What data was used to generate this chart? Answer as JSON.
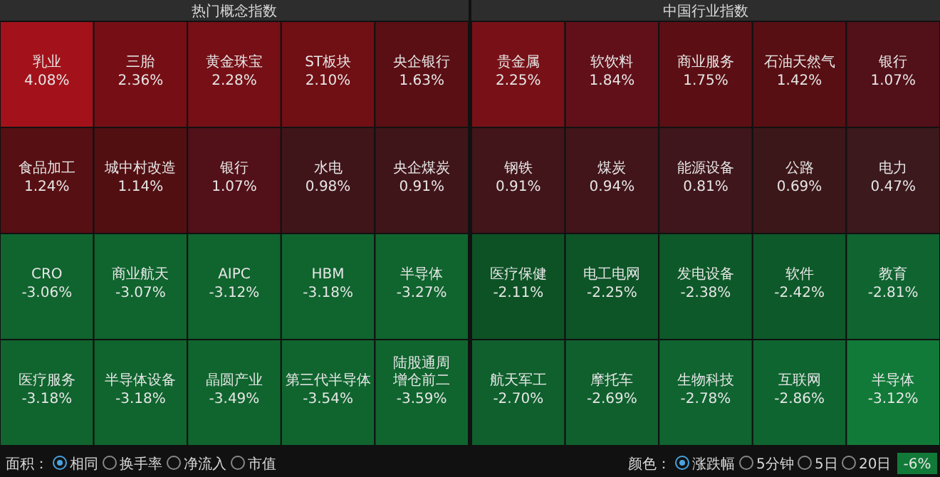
{
  "chart_data": [
    {
      "type": "other",
      "title": "热门概念指数",
      "categories": [
        "乳业",
        "三胎",
        "黄金珠宝",
        "ST板块",
        "央企银行",
        "食品加工",
        "城中村改造",
        "银行",
        "水电",
        "央企煤炭",
        "CRO",
        "商业航天",
        "AIPC",
        "HBM",
        "半导体",
        "医疗服务",
        "半导体设备",
        "晶圆产业",
        "第三代半导体",
        "陆股通周增仓前二"
      ],
      "values": [
        4.08,
        2.36,
        2.28,
        2.1,
        1.63,
        1.24,
        1.14,
        1.07,
        0.98,
        0.91,
        -3.06,
        -3.07,
        -3.12,
        -3.18,
        -3.27,
        -3.18,
        -3.18,
        -3.49,
        -3.54,
        -3.59
      ],
      "value_labels": [
        "4.08%",
        "2.36%",
        "2.28%",
        "2.10%",
        "1.63%",
        "1.24%",
        "1.14%",
        "1.07%",
        "0.98%",
        "0.91%",
        "-3.06%",
        "-3.07%",
        "-3.12%",
        "-3.18%",
        "-3.27%",
        "-3.18%",
        "-3.18%",
        "-3.49%",
        "-3.54%",
        "-3.59%"
      ],
      "colors": [
        "#a3121a",
        "#7a1016",
        "#7a1117",
        "#741015",
        "#5e1015",
        "#5a1013",
        "#561013",
        "#56111a",
        "#44161b",
        "#44161b",
        "#10662f",
        "#10662f",
        "#10662f",
        "#10662f",
        "#10662f",
        "#10662f",
        "#10662f",
        "#10662f",
        "#10662f",
        "#10662f"
      ],
      "annotations": [
        "面积：",
        "相同",
        "换手率",
        "净流入",
        "市值"
      ]
    },
    {
      "type": "other",
      "title": "中国行业指数",
      "categories": [
        "贵金属",
        "软饮料",
        "商业服务",
        "石油天然气",
        "银行",
        "钢铁",
        "煤炭",
        "能源设备",
        "公路",
        "电力",
        "医疗保健",
        "电工电网",
        "发电设备",
        "软件",
        "教育",
        "航天军工",
        "摩托车",
        "生物科技",
        "互联网",
        "半导体"
      ],
      "values": [
        2.25,
        1.84,
        1.75,
        1.42,
        1.07,
        0.91,
        0.94,
        0.81,
        0.69,
        0.47,
        -2.11,
        -2.25,
        -2.38,
        -2.42,
        -2.81,
        -2.7,
        -2.69,
        -2.78,
        -2.86,
        -3.12
      ],
      "value_labels": [
        "2.25%",
        "1.84%",
        "1.75%",
        "1.42%",
        "1.07%",
        "0.91%",
        "0.94%",
        "0.81%",
        "0.69%",
        "0.47%",
        "-2.11%",
        "-2.25%",
        "-2.38%",
        "-2.42%",
        "-2.81%",
        "-2.70%",
        "-2.69%",
        "-2.78%",
        "-2.86%",
        "-3.12%"
      ],
      "colors": [
        "#7a1117",
        "#64101a",
        "#5e1015",
        "#5c1014",
        "#56111a",
        "#44161b",
        "#44161b",
        "#42171c",
        "#40181c",
        "#3e1a1e",
        "#0d5426",
        "#0d5628",
        "#0e5a2a",
        "#0e5a2a",
        "#0f6530",
        "#0f612d",
        "#0f612d",
        "#0f6530",
        "#0f6530",
        "#117a38"
      ],
      "annotations": [
        "颜色：",
        "涨跌幅",
        "5分钟",
        "5日",
        "20日",
        "-6%"
      ]
    }
  ]
}
